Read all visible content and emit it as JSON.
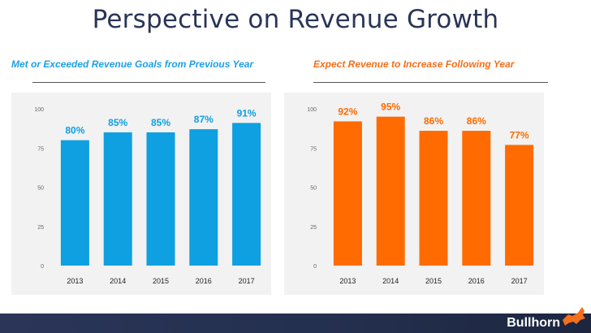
{
  "slide": {
    "title": "Perspective on Revenue Growth",
    "logo_text": "Bullhorn"
  },
  "chart_data": [
    {
      "type": "bar",
      "title": "Met or Exceeded Revenue Goals from Previous Year",
      "categories": [
        "2013",
        "2014",
        "2015",
        "2016",
        "2017"
      ],
      "values": [
        80,
        85,
        85,
        87,
        91
      ],
      "data_labels": [
        "80%",
        "85%",
        "85%",
        "87%",
        "91%"
      ],
      "ylim": [
        0,
        100
      ],
      "yticks": [
        0,
        25,
        50,
        75,
        100
      ],
      "grid": false,
      "color": "#0ea0e0",
      "title_color": "#1fa0e2"
    },
    {
      "type": "bar",
      "title": "Expect Revenue to Increase Following Year",
      "categories": [
        "2013",
        "2014",
        "2015",
        "2016",
        "2017"
      ],
      "values": [
        92,
        95,
        86,
        86,
        77
      ],
      "data_labels": [
        "92%",
        "95%",
        "86%",
        "86%",
        "77%"
      ],
      "ylim": [
        0,
        100
      ],
      "yticks": [
        0,
        25,
        50,
        75,
        100
      ],
      "grid": false,
      "color": "#ff6b00",
      "title_color": "#f36f1b"
    }
  ]
}
